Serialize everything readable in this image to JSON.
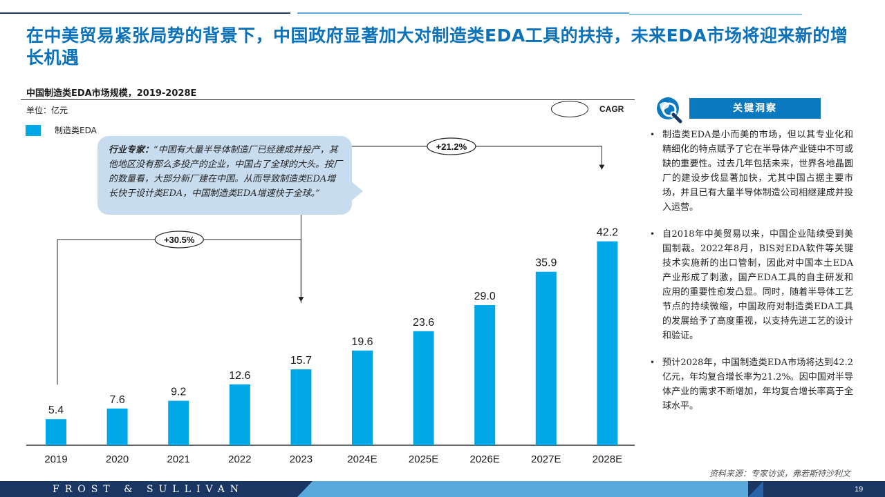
{
  "page": {
    "title": "在中美贸易紧张局势的背景下，中国政府显著加大对制造类EDA工具的扶持，未来EDA市场将迎来新的增长机遇",
    "page_number": "19"
  },
  "chart_title": "中国制造类EDA市场规模，2019-2028E",
  "unit_label": "单位：亿元",
  "legend_label": "制造类EDA",
  "cagr_label": "CAGR",
  "callout": {
    "expert_label": "行业专家：",
    "quote": "“中国有大量半导体制造厂已经建成并投产，其他地区没有那么多投产的企业，中国占了全球的大头。按厂的数量看，大部分新厂建在中国。从而导致制造类EDA增长快于设计类EDA，中国制造类EDA增速快于全球。”"
  },
  "chart_data": {
    "type": "bar",
    "title": "中国制造类EDA市场规模，2019-2028E",
    "xlabel": "",
    "ylabel": "",
    "categories": [
      "2019",
      "2020",
      "2021",
      "2022",
      "2023",
      "2024E",
      "2025E",
      "2026E",
      "2027E",
      "2028E"
    ],
    "series": [
      {
        "name": "制造类EDA",
        "values": [
          5.4,
          7.6,
          9.2,
          12.6,
          15.7,
          19.6,
          23.6,
          29.0,
          35.9,
          42.2
        ]
      }
    ],
    "value_labels": [
      "5.4",
      "7.6",
      "9.2",
      "12.6",
      "15.7",
      "19.6",
      "23.6",
      "29.0",
      "35.9",
      "42.2"
    ],
    "cagr": [
      {
        "from": "2019",
        "to": "2023",
        "label": "+30.5%"
      },
      {
        "from": "2023",
        "to": "2028E",
        "label": "+21.2%"
      }
    ],
    "ylim": [
      0,
      50
    ],
    "grid": false,
    "bar_color": "#00a7e6"
  },
  "insights": {
    "header": "关键洞察",
    "items": [
      "制造类EDA是小而美的市场，但以其专业化和精细化的特点赋予了它在半导体产业链中不可或缺的重要性。过去几年包括未来，世界各地晶圆厂的建设步伐显著加快，尤其中国占据主要市场，并且已有大量半导体制造公司相继建成并投入运营。",
      "自2018年中美贸易以来，中国企业陆续受到美国制裁。2022年8月，BIS对EDA软件等关键技术实施新的出口管制，因此对中国本土EDA产业形成了刺激，国产EDA工具的自主研发和应用的重要性愈发凸显。同时，随着半导体工艺节点的持续微缩，中国政府对制造类EDA工具的发展给予了高度重视，以支持先进工艺的设计和验证。",
      "预计2028年，中国制造类EDA市场将达到42.2亿元，年均复合增长率为21.2%。因中国对半导体产业的需求不断增加，年均复合增长率高于全球水平。"
    ]
  },
  "source": "资料来源：专家访谈，弗若斯特沙利文",
  "footer": {
    "brand": "FROST & SULLIVAN"
  },
  "icons": {
    "insight": "globe-magnifier-icon"
  }
}
